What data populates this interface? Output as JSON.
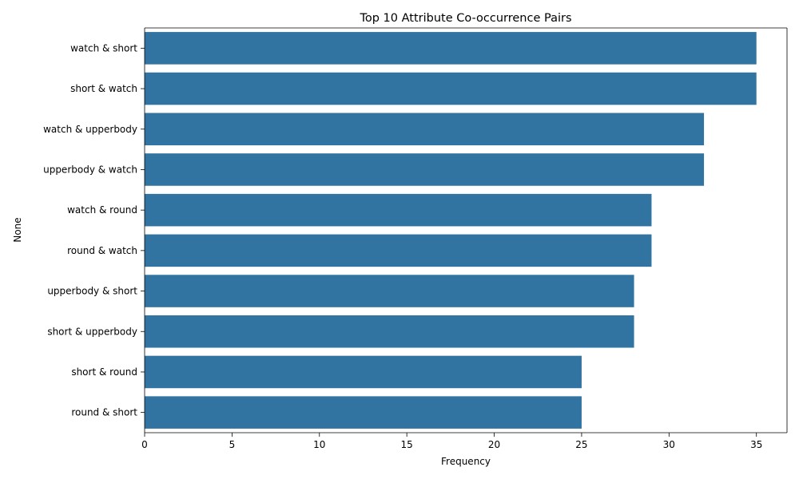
{
  "chart_data": {
    "type": "bar",
    "orientation": "horizontal",
    "title": "Top 10 Attribute Co-occurrence Pairs",
    "xlabel": "Frequency",
    "ylabel": "None",
    "xlim": [
      0,
      36.75
    ],
    "xticks": [
      0,
      5,
      10,
      15,
      20,
      25,
      30,
      35
    ],
    "grid": false,
    "legend": "none",
    "bar_color": "#3274a1",
    "categories": [
      "watch & short",
      "short & watch",
      "watch & upperbody",
      "upperbody & watch",
      "watch & round",
      "round & watch",
      "upperbody & short",
      "short & upperbody",
      "short & round",
      "round & short"
    ],
    "values": [
      35,
      35,
      32,
      32,
      29,
      29,
      28,
      28,
      25,
      25
    ]
  }
}
